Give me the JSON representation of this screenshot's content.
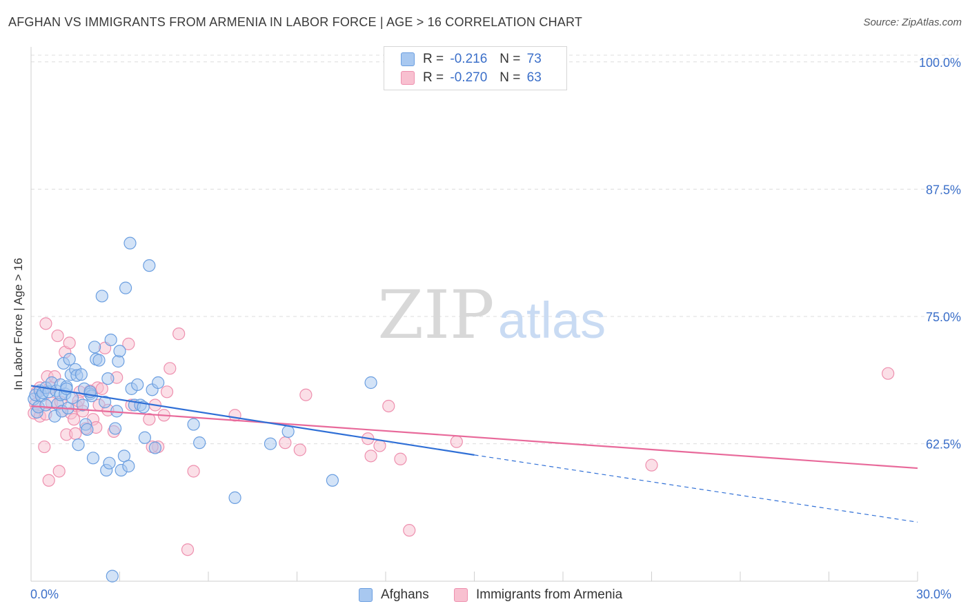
{
  "title": "AFGHAN VS IMMIGRANTS FROM ARMENIA IN LABOR FORCE | AGE > 16 CORRELATION CHART",
  "source": "Source: ZipAtlas.com",
  "watermark": {
    "zip": "ZIP",
    "atlas": "atlas"
  },
  "legend_top": {
    "rows": [
      {
        "r_label": "R =",
        "r_value": "-0.216",
        "n_label": "N =",
        "n_value": "73"
      },
      {
        "r_label": "R =",
        "r_value": "-0.270",
        "n_label": "N =",
        "n_value": "63"
      }
    ]
  },
  "legend_bottom": {
    "series1": "Afghans",
    "series2": "Immigrants from Armenia"
  },
  "colors": {
    "afghan_fill": "#a8c8f0",
    "afghan_stroke": "#6a9ee0",
    "afghan_line": "#2f6fd6",
    "armenia_fill": "#f8c0d0",
    "armenia_stroke": "#ee8fae",
    "armenia_line": "#e8699a",
    "tick_text": "#3b6fc9",
    "grid": "#dcdcdc"
  },
  "chart_data": {
    "type": "scatter",
    "title": "AFGHAN VS IMMIGRANTS FROM ARMENIA IN LABOR FORCE | AGE > 16 CORRELATION CHART",
    "xlabel": "",
    "ylabel": "In Labor Force | Age > 16",
    "xlim": [
      0,
      30
    ],
    "ylim": [
      49,
      101
    ],
    "x_tick_labels": [
      "0.0%",
      "30.0%"
    ],
    "y_ticks": [
      62.5,
      75.0,
      87.5,
      100.0
    ],
    "y_tick_labels": [
      "62.5%",
      "75.0%",
      "87.5%",
      "100.0%"
    ],
    "grid": true,
    "series": [
      {
        "name": "Afghans",
        "r": -0.216,
        "n": 73,
        "trend": {
          "x0": 0,
          "y0": 68.2,
          "x1": 15,
          "y1": 61.4,
          "dash_x1": 30,
          "dash_y1": 54.8
        },
        "points": [
          [
            0.1,
            66.9
          ],
          [
            0.15,
            67.3
          ],
          [
            0.2,
            65.6
          ],
          [
            0.25,
            66.1
          ],
          [
            0.3,
            67.7
          ],
          [
            0.35,
            67.2
          ],
          [
            0.4,
            67.5
          ],
          [
            0.5,
            68.0
          ],
          [
            0.5,
            66.3
          ],
          [
            0.6,
            67.6
          ],
          [
            0.7,
            68.5
          ],
          [
            0.8,
            65.2
          ],
          [
            0.85,
            67.7
          ],
          [
            0.9,
            66.4
          ],
          [
            1.0,
            67.3
          ],
          [
            1.0,
            68.3
          ],
          [
            1.05,
            65.7
          ],
          [
            1.1,
            70.4
          ],
          [
            1.15,
            67.4
          ],
          [
            1.2,
            68.1
          ],
          [
            1.25,
            66.0
          ],
          [
            1.3,
            70.8
          ],
          [
            1.35,
            69.3
          ],
          [
            1.4,
            67.0
          ],
          [
            1.5,
            69.8
          ],
          [
            1.55,
            69.2
          ],
          [
            1.6,
            62.4
          ],
          [
            1.7,
            69.3
          ],
          [
            1.75,
            66.3
          ],
          [
            1.8,
            67.9
          ],
          [
            1.85,
            64.4
          ],
          [
            1.9,
            63.9
          ],
          [
            2.0,
            67.4
          ],
          [
            2.05,
            67.2
          ],
          [
            2.1,
            61.1
          ],
          [
            2.15,
            72.0
          ],
          [
            2.2,
            70.8
          ],
          [
            2.3,
            70.7
          ],
          [
            2.4,
            77.0
          ],
          [
            2.5,
            66.6
          ],
          [
            2.55,
            59.9
          ],
          [
            2.6,
            68.9
          ],
          [
            2.65,
            60.6
          ],
          [
            2.7,
            72.7
          ],
          [
            2.75,
            49.5
          ],
          [
            2.85,
            64.0
          ],
          [
            2.9,
            65.7
          ],
          [
            2.95,
            70.6
          ],
          [
            3.0,
            71.6
          ],
          [
            3.05,
            59.9
          ],
          [
            3.15,
            61.3
          ],
          [
            3.2,
            77.8
          ],
          [
            3.3,
            60.3
          ],
          [
            3.35,
            82.2
          ],
          [
            3.4,
            67.9
          ],
          [
            3.5,
            66.3
          ],
          [
            3.6,
            68.3
          ],
          [
            3.7,
            66.3
          ],
          [
            3.8,
            66.1
          ],
          [
            3.85,
            63.1
          ],
          [
            4.0,
            80.0
          ],
          [
            4.1,
            67.8
          ],
          [
            4.2,
            62.1
          ],
          [
            4.3,
            68.5
          ],
          [
            5.5,
            64.4
          ],
          [
            5.7,
            62.6
          ],
          [
            6.9,
            57.2
          ],
          [
            8.1,
            62.5
          ],
          [
            8.7,
            63.7
          ],
          [
            10.2,
            58.9
          ],
          [
            11.5,
            68.5
          ],
          [
            2.0,
            67.6
          ],
          [
            1.2,
            67.9
          ]
        ]
      },
      {
        "name": "Immigrants from Armenia",
        "r": -0.27,
        "n": 63,
        "trend": {
          "x0": 0,
          "y0": 66.2,
          "x1": 30,
          "y1": 60.1
        },
        "points": [
          [
            0.1,
            65.5
          ],
          [
            0.15,
            66.4
          ],
          [
            0.2,
            67.6
          ],
          [
            0.3,
            68.0
          ],
          [
            0.3,
            65.2
          ],
          [
            0.45,
            62.2
          ],
          [
            0.5,
            74.3
          ],
          [
            0.55,
            69.1
          ],
          [
            0.6,
            58.9
          ],
          [
            0.65,
            68.0
          ],
          [
            0.7,
            66.5
          ],
          [
            0.8,
            69.1
          ],
          [
            0.9,
            73.1
          ],
          [
            0.95,
            59.8
          ],
          [
            1.0,
            66.6
          ],
          [
            1.05,
            65.7
          ],
          [
            1.15,
            71.5
          ],
          [
            1.2,
            63.4
          ],
          [
            1.3,
            72.4
          ],
          [
            1.35,
            65.5
          ],
          [
            1.45,
            64.9
          ],
          [
            1.5,
            63.5
          ],
          [
            1.55,
            66.2
          ],
          [
            1.65,
            67.6
          ],
          [
            1.75,
            65.7
          ],
          [
            1.85,
            64.0
          ],
          [
            2.0,
            67.7
          ],
          [
            2.1,
            64.9
          ],
          [
            2.2,
            64.1
          ],
          [
            2.25,
            68.0
          ],
          [
            2.3,
            66.3
          ],
          [
            2.4,
            67.9
          ],
          [
            2.5,
            71.9
          ],
          [
            2.6,
            65.8
          ],
          [
            2.8,
            63.7
          ],
          [
            2.9,
            69.0
          ],
          [
            3.3,
            72.3
          ],
          [
            3.4,
            66.3
          ],
          [
            4.0,
            64.9
          ],
          [
            4.2,
            66.3
          ],
          [
            4.3,
            62.2
          ],
          [
            4.5,
            65.3
          ],
          [
            4.6,
            67.6
          ],
          [
            4.7,
            69.9
          ],
          [
            5.0,
            73.3
          ],
          [
            5.3,
            52.1
          ],
          [
            5.5,
            59.8
          ],
          [
            6.9,
            65.3
          ],
          [
            8.6,
            62.6
          ],
          [
            9.1,
            61.9
          ],
          [
            9.3,
            67.3
          ],
          [
            11.4,
            63.0
          ],
          [
            11.5,
            61.3
          ],
          [
            11.8,
            62.3
          ],
          [
            12.1,
            66.2
          ],
          [
            12.5,
            61.0
          ],
          [
            12.8,
            54.0
          ],
          [
            14.4,
            62.7
          ],
          [
            21.0,
            60.4
          ],
          [
            29.0,
            69.4
          ],
          [
            4.1,
            62.2
          ],
          [
            1.6,
            66.7
          ],
          [
            0.5,
            65.4
          ]
        ]
      }
    ]
  }
}
